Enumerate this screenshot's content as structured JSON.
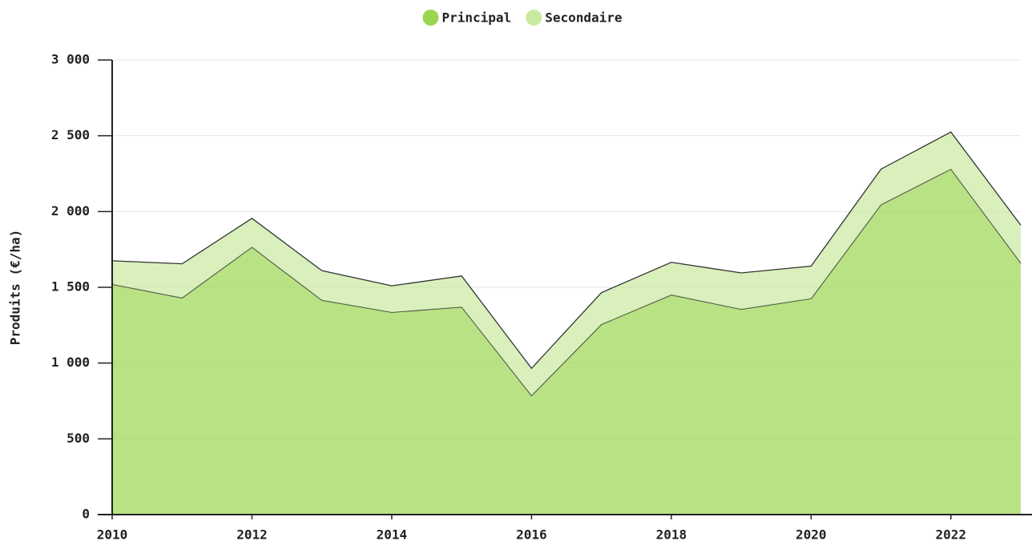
{
  "chart_data": {
    "type": "stacked-area",
    "y_label": "Produits (€/ha)",
    "x": [
      2010,
      2011,
      2012,
      2013,
      2014,
      2015,
      2016,
      2017,
      2018,
      2019,
      2020,
      2021,
      2022,
      2023
    ],
    "series": [
      {
        "name": "Principal",
        "color": "#9bd651",
        "values": [
          1520,
          1430,
          1765,
          1415,
          1335,
          1370,
          785,
          1255,
          1450,
          1355,
          1425,
          2045,
          2280,
          1660
        ]
      },
      {
        "name": "Secondaire",
        "color": "#c9e9a0",
        "values": [
          155,
          225,
          190,
          195,
          175,
          205,
          180,
          210,
          215,
          240,
          215,
          235,
          245,
          250
        ]
      }
    ],
    "xlim": [
      2010,
      2023
    ],
    "xticks": [
      2010,
      2012,
      2014,
      2016,
      2018,
      2020,
      2022
    ],
    "ylim": [
      0,
      3000
    ],
    "yticks": [
      0,
      500,
      {
        "value": 1000,
        "label": "1 000"
      },
      {
        "value": 1500,
        "label": "1 500"
      },
      {
        "value": 2000,
        "label": "2 000"
      },
      {
        "value": 2500,
        "label": "2 500"
      },
      {
        "value": 3000,
        "label": "3 000"
      }
    ],
    "grid": true,
    "legend": "top"
  }
}
